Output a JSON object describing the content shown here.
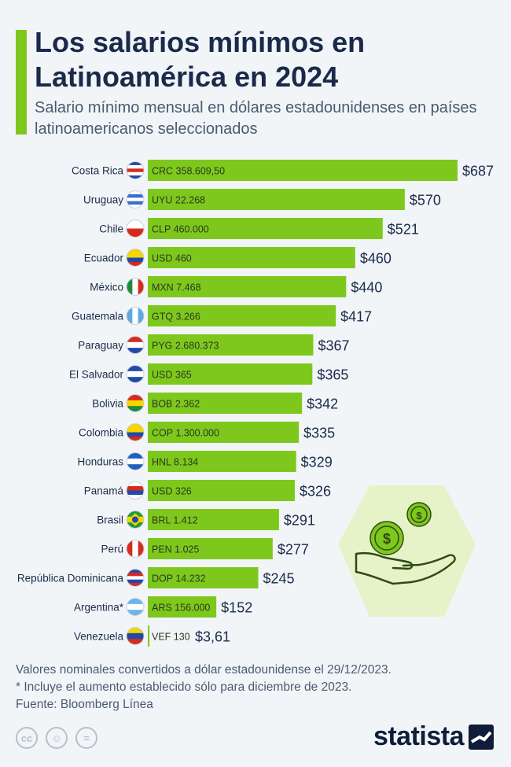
{
  "header": {
    "title": "Los salarios mínimos en Latinoamérica en 2024",
    "subtitle": "Salario mínimo mensual en dólares estadounidenses en países latinoamericanos seleccionados"
  },
  "chart_data": {
    "type": "bar",
    "orientation": "horizontal",
    "categories": [
      "Costa Rica",
      "Uruguay",
      "Chile",
      "Ecuador",
      "México",
      "Guatemala",
      "Paraguay",
      "El Salvador",
      "Bolivia",
      "Colombia",
      "Honduras",
      "Panamá",
      "Brasil",
      "Perú",
      "República Dominicana",
      "Argentina*",
      "Venezuela"
    ],
    "values": [
      687,
      570,
      521,
      460,
      440,
      417,
      367,
      365,
      342,
      335,
      329,
      326,
      291,
      277,
      245,
      152,
      3.61
    ],
    "value_labels": [
      "$687",
      "$570",
      "$521",
      "$460",
      "$440",
      "$417",
      "$367",
      "$365",
      "$342",
      "$335",
      "$329",
      "$326",
      "$291",
      "$277",
      "$245",
      "$152",
      "$3,61"
    ],
    "local_currency_labels": [
      "CRC 358.609,50",
      "UYU 22.268",
      "CLP 460.000",
      "USD 460",
      "MXN 7.468",
      "GTQ 3.266",
      "PYG 2.680.373",
      "USD 365",
      "BOB 2.362",
      "COP 1.300.000",
      "HNL 8.134",
      "USD 326",
      "BRL 1.412",
      "PEN 1.025",
      "DOP 14.232",
      "ARS 156.000",
      "VEF 130"
    ],
    "flag_icons": [
      "flag-costa-rica-icon",
      "flag-uruguay-icon",
      "flag-chile-icon",
      "flag-ecuador-icon",
      "flag-mexico-icon",
      "flag-guatemala-icon",
      "flag-paraguay-icon",
      "flag-el-salvador-icon",
      "flag-bolivia-icon",
      "flag-colombia-icon",
      "flag-honduras-icon",
      "flag-panama-icon",
      "flag-brasil-icon",
      "flag-peru-icon",
      "flag-republica-dominicana-icon",
      "flag-argentina-icon",
      "flag-venezuela-icon"
    ],
    "xlim": [
      0,
      687
    ],
    "grid": false,
    "bar_color": "#7ec81e"
  },
  "notes": {
    "line1": "Valores nominales convertidos a dólar estadounidense el 29/12/2023.",
    "line2": "* Incluye el aumento establecido sólo para diciembre de 2023.",
    "source": "Fuente: Bloomberg Línea"
  },
  "footer": {
    "brand": "statista",
    "cc_icons": [
      "cc-icon",
      "by-icon",
      "nd-icon"
    ],
    "cc_glyphs": [
      "cc",
      "☺",
      "="
    ]
  },
  "colors": {
    "accent": "#7ec81e",
    "title": "#1b2a4a",
    "illustration_bg": "#e6f3c9",
    "coin": "#7ec81e"
  }
}
